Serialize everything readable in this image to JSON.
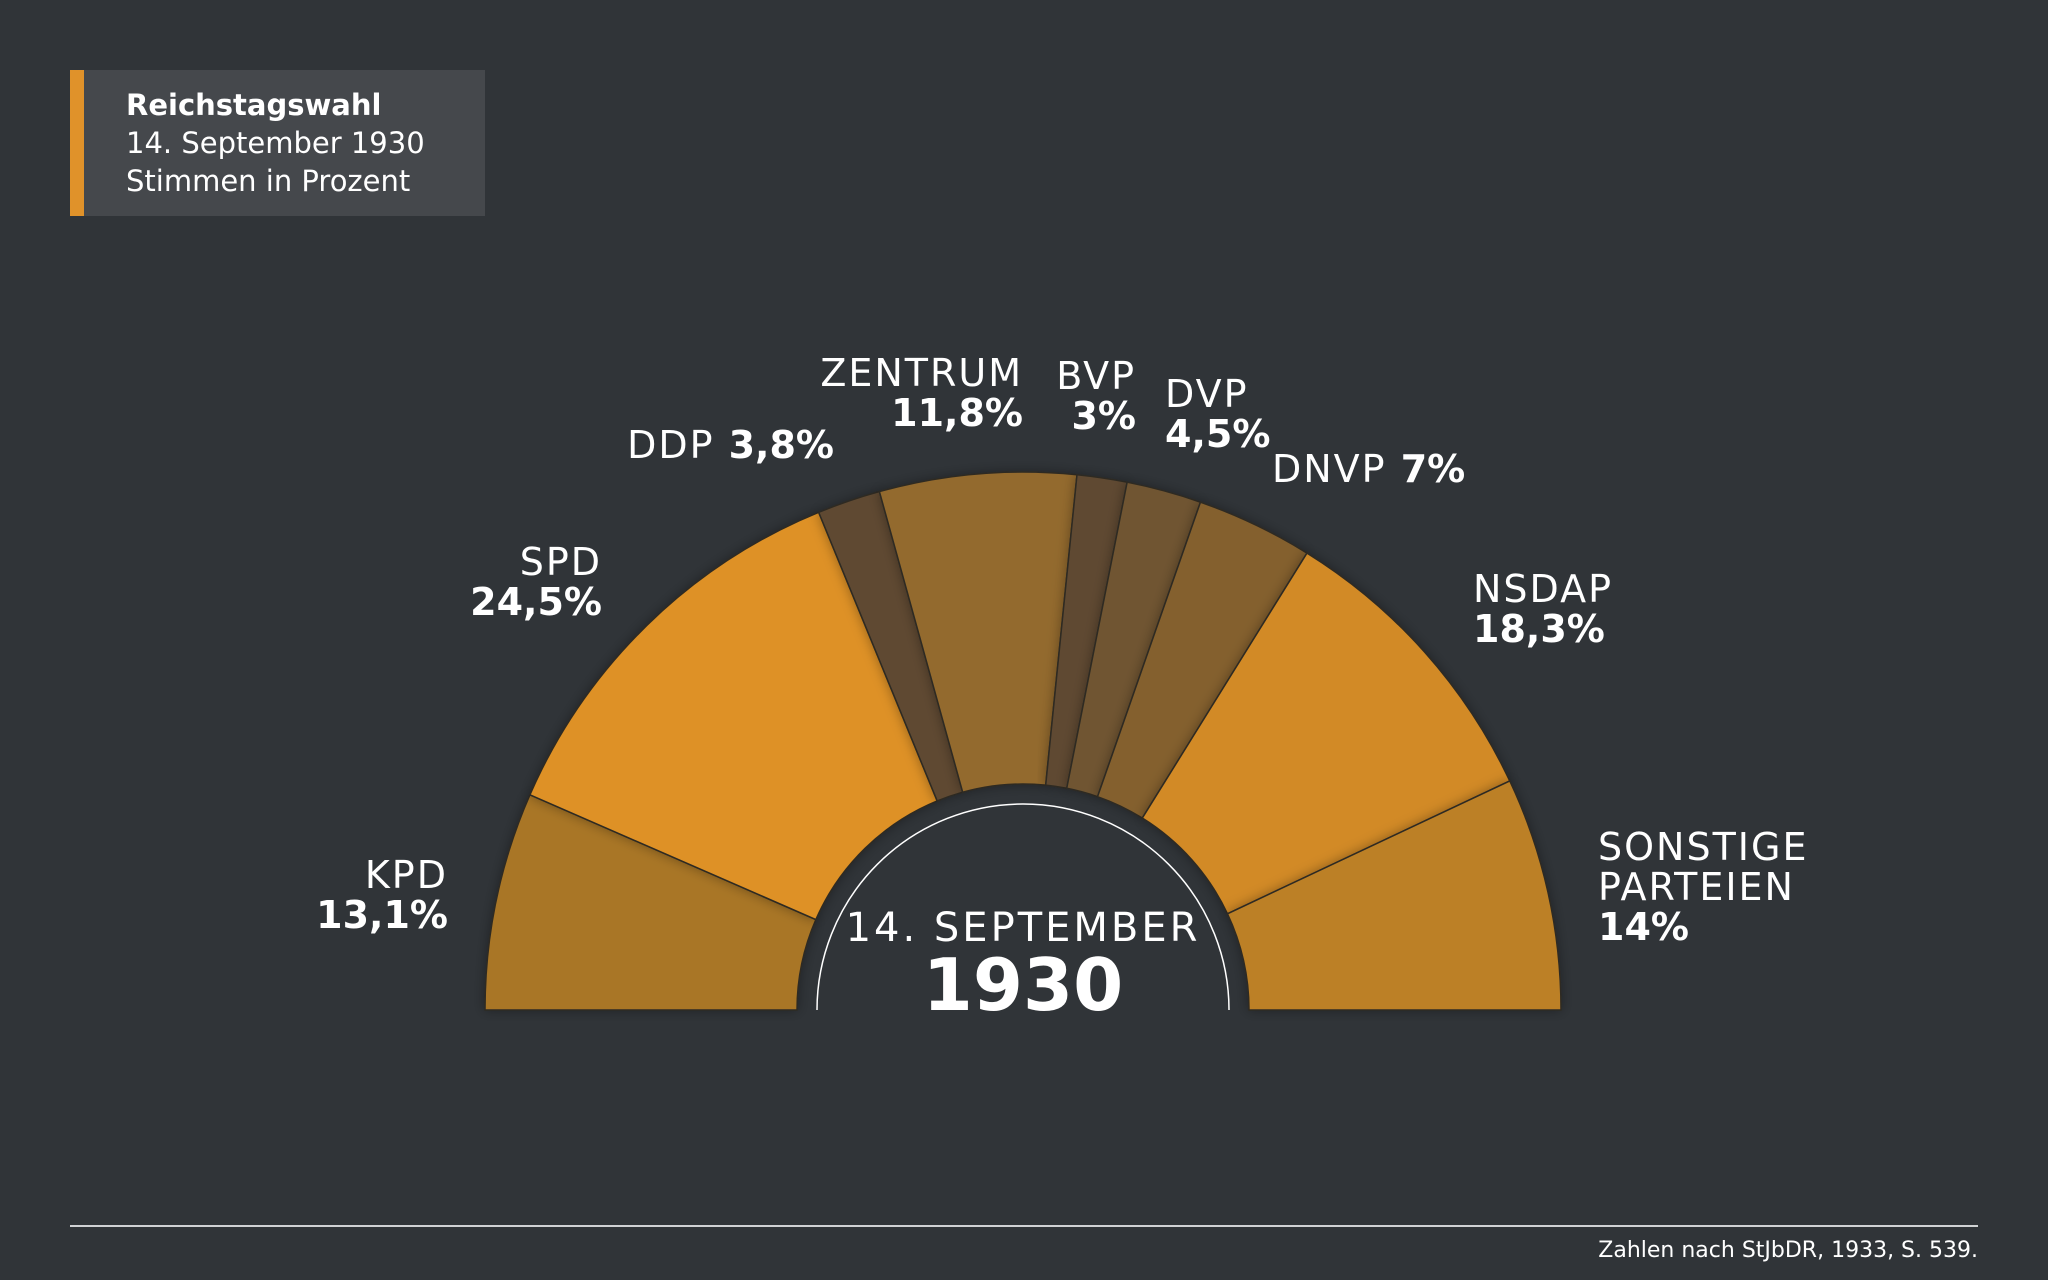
{
  "header": {
    "title": "Reichstagswahl",
    "subtitle_date": "14. September 1930",
    "subtitle_unit": "Stimmen in Prozent"
  },
  "center": {
    "date": "14. SEPTEMBER",
    "year": "1930"
  },
  "footer": {
    "source": "Zahlen nach StJbDR, 1933, S. 539."
  },
  "chart_data": {
    "type": "pie",
    "variant": "half-donut",
    "title": "Reichstagswahl",
    "unit": "Stimmen in Prozent",
    "slices": [
      {
        "party": "KPD",
        "value": 13.1,
        "value_label": "13,1%",
        "color": "#a97627"
      },
      {
        "party": "SPD",
        "value": 24.5,
        "value_label": "24,5%",
        "color": "#de9125"
      },
      {
        "party": "DDP",
        "value": 3.8,
        "value_label": "3,8%",
        "color": "#5e4a32"
      },
      {
        "party": "ZENTRUM",
        "value": 11.8,
        "value_label": "11,8%",
        "color": "#936a2d"
      },
      {
        "party": "BVP",
        "value": 3,
        "value_label": "3%",
        "color": "#5e4a32"
      },
      {
        "party": "DVP",
        "value": 4.5,
        "value_label": "4,5%",
        "color": "#6f5530"
      },
      {
        "party": "DNVP",
        "value": 7,
        "value_label": "7%",
        "color": "#84602e"
      },
      {
        "party": "NSDAP",
        "value": 18.3,
        "value_label": "18,3%",
        "color": "#d28a27"
      },
      {
        "party": "SONSTIGE PARTEIEN",
        "value": 14,
        "value_label": "14%",
        "color": "#bc8028"
      }
    ]
  }
}
